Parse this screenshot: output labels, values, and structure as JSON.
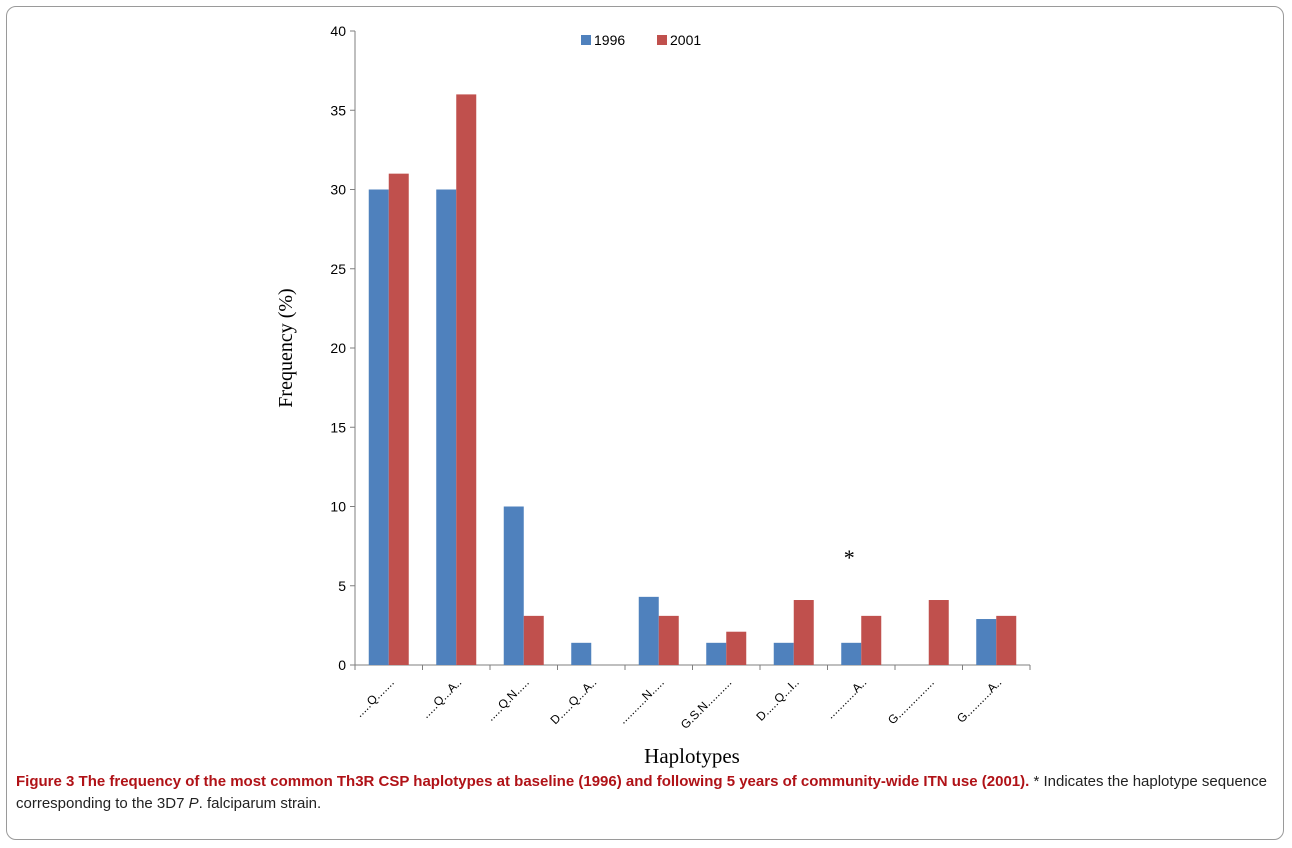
{
  "figure": {
    "caption_label": "Figure 3",
    "caption_bold": "The frequency of the most common Th3R CSP haplotypes at baseline (1996) and following 5 years of community-wide ITN use (2001).",
    "caption_text_a": "* Indicates the haplotype sequence corresponding to the 3D7",
    "caption_italic": "P",
    "caption_text_b": ". falciparum strain."
  },
  "chart_data": {
    "type": "bar",
    "title": "",
    "xlabel": "Haplotypes",
    "ylabel": "Frequency (%)",
    "ylim": [
      0,
      40
    ],
    "yticks": [
      0,
      5,
      10,
      15,
      20,
      25,
      30,
      35,
      40
    ],
    "categories": [
      ".....Q.......",
      ".....Q...A..",
      ".....Q.N.....",
      "D.....Q...A..",
      "..........N.....",
      "G.S.N..........",
      "D.....Q...I..",
      "...........A..",
      "G...............",
      "G..........A.."
    ],
    "series": [
      {
        "name": "1996",
        "color": "#4f81bd",
        "values": [
          30,
          30,
          10,
          1.4,
          4.3,
          1.4,
          1.4,
          1.4,
          0,
          2.9
        ]
      },
      {
        "name": "2001",
        "color": "#c0504d",
        "values": [
          31,
          36,
          3.1,
          0,
          3.1,
          2.1,
          4.1,
          3.1,
          4.1,
          3.1
        ]
      }
    ],
    "annotation": {
      "text": "*",
      "category_index": 7
    },
    "legend_position": "top-center",
    "grid": false
  }
}
